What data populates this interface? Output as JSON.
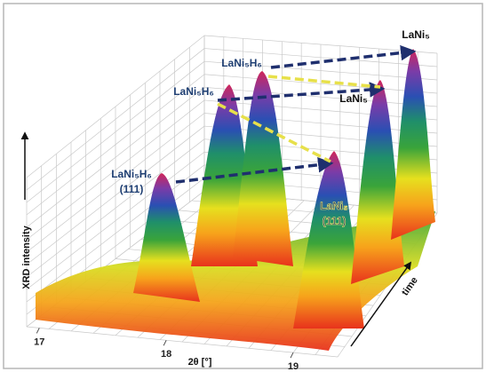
{
  "chart_data": {
    "type": "surface",
    "y_label": "XRD intensity",
    "x_label": "2θ [°]",
    "z_label": "time",
    "xlim": [
      16.9,
      19.35
    ],
    "xticks": [
      17,
      18,
      19
    ],
    "annotations": [
      "LaNi₅",
      "LaNi₅H₆",
      "LaNi₅H₆",
      "LaNi₅",
      "LaNi₅H₆",
      "(111)",
      "LaNi₅",
      "(111)"
    ]
  }
}
